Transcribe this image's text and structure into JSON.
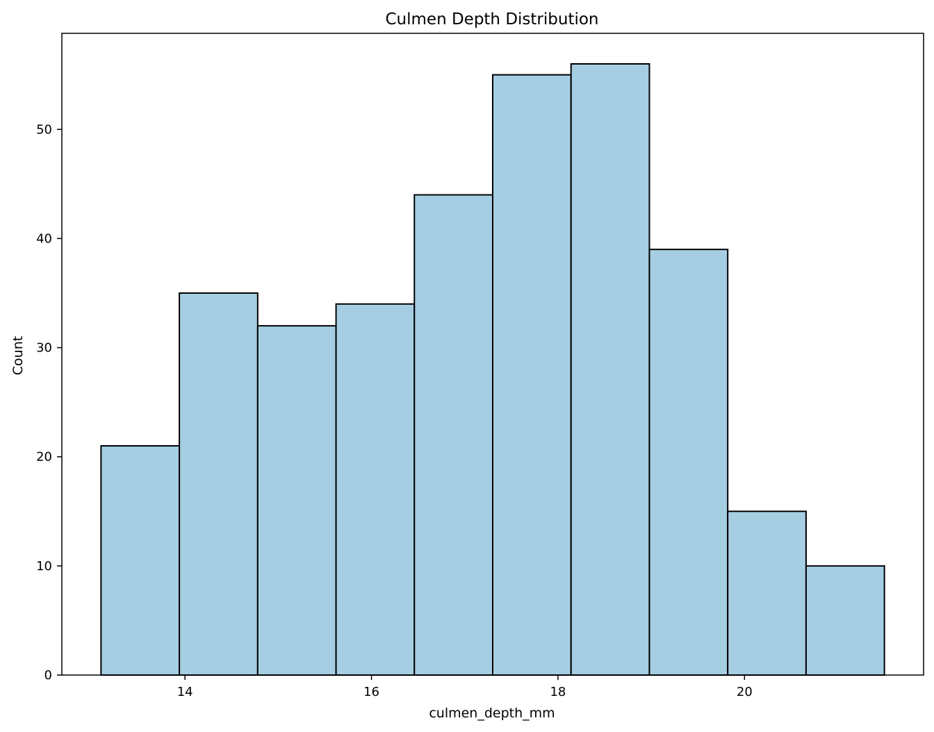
{
  "chart_data": {
    "type": "bar",
    "title": "Culmen Depth Distribution",
    "xlabel": "culmen_depth_mm",
    "ylabel": "Count",
    "bins": [
      {
        "x0": 13.1,
        "x1": 13.94,
        "count": 21
      },
      {
        "x0": 13.94,
        "x1": 14.78,
        "count": 35
      },
      {
        "x0": 14.78,
        "x1": 15.62,
        "count": 32
      },
      {
        "x0": 15.62,
        "x1": 16.46,
        "count": 34
      },
      {
        "x0": 16.46,
        "x1": 17.3,
        "count": 44
      },
      {
        "x0": 17.3,
        "x1": 18.14,
        "count": 55
      },
      {
        "x0": 18.14,
        "x1": 18.98,
        "count": 56
      },
      {
        "x0": 18.98,
        "x1": 19.82,
        "count": 39
      },
      {
        "x0": 19.82,
        "x1": 20.66,
        "count": 15
      },
      {
        "x0": 20.66,
        "x1": 21.5,
        "count": 10
      }
    ],
    "xlim": [
      12.68,
      21.92
    ],
    "ylim": [
      0,
      58.8
    ],
    "xticks": [
      14,
      16,
      18,
      20
    ],
    "yticks": [
      0,
      10,
      20,
      30,
      40,
      50
    ],
    "bar_color": "#a6cee3",
    "edge_color": "#000000",
    "grid": false,
    "legend": "none"
  }
}
